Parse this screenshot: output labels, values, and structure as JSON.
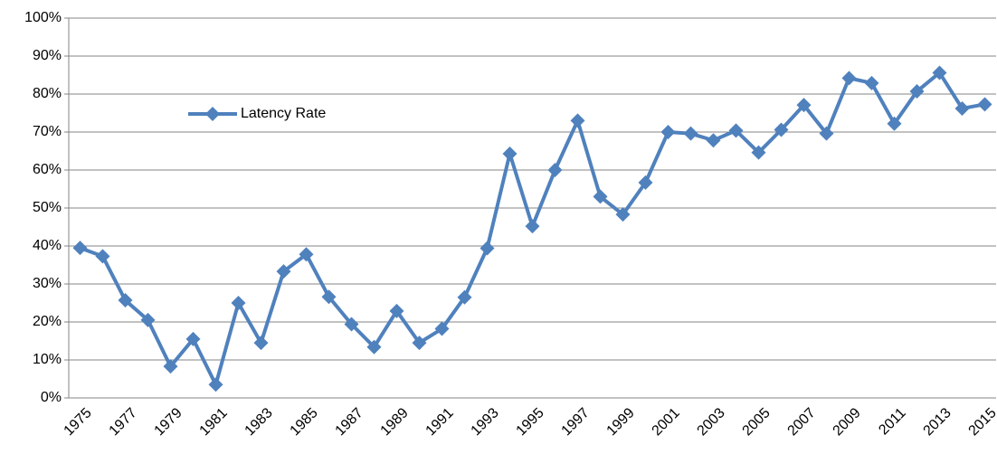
{
  "chart_data": {
    "type": "line",
    "categories": [
      "1975",
      null,
      "1977",
      null,
      "1979",
      null,
      "1981",
      null,
      "1983",
      null,
      "1985",
      null,
      "1987",
      null,
      "1989",
      null,
      "1991",
      null,
      "1993",
      null,
      "1995",
      null,
      "1997",
      null,
      "1999",
      null,
      "2001",
      null,
      "2003",
      null,
      "2005",
      null,
      "2007",
      null,
      "2009",
      null,
      "2011",
      null,
      "2013",
      null,
      "2015"
    ],
    "series": [
      {
        "name": "Latency Rate",
        "color": "#4f81bd",
        "values": [
          39.5,
          37.3,
          25.7,
          20.5,
          8.3,
          15.5,
          3.5,
          25,
          14.5,
          33.3,
          37.8,
          26.6,
          19.4,
          13.4,
          22.9,
          14.5,
          18.2,
          26.5,
          39.4,
          64.3,
          45.2,
          60,
          73,
          53,
          48.3,
          56.7,
          70,
          69.6,
          67.8,
          70.4,
          64.6,
          70.6,
          77.1,
          69.6,
          84.2,
          82.9,
          72.2,
          80.7,
          85.6,
          76.2,
          77.3
        ]
      }
    ],
    "ylim": [
      0,
      100
    ],
    "yticks": [
      {
        "value": 0,
        "label": "0%"
      },
      {
        "value": 10,
        "label": "10%"
      },
      {
        "value": 20,
        "label": "20%"
      },
      {
        "value": 30,
        "label": "30%"
      },
      {
        "value": 40,
        "label": "40%"
      },
      {
        "value": 50,
        "label": "50%"
      },
      {
        "value": 60,
        "label": "60%"
      },
      {
        "value": 70,
        "label": "70%"
      },
      {
        "value": 80,
        "label": "80%"
      },
      {
        "value": 90,
        "label": "90%"
      },
      {
        "value": 100,
        "label": "100%"
      }
    ],
    "grid": true,
    "legend": "upper-left"
  }
}
